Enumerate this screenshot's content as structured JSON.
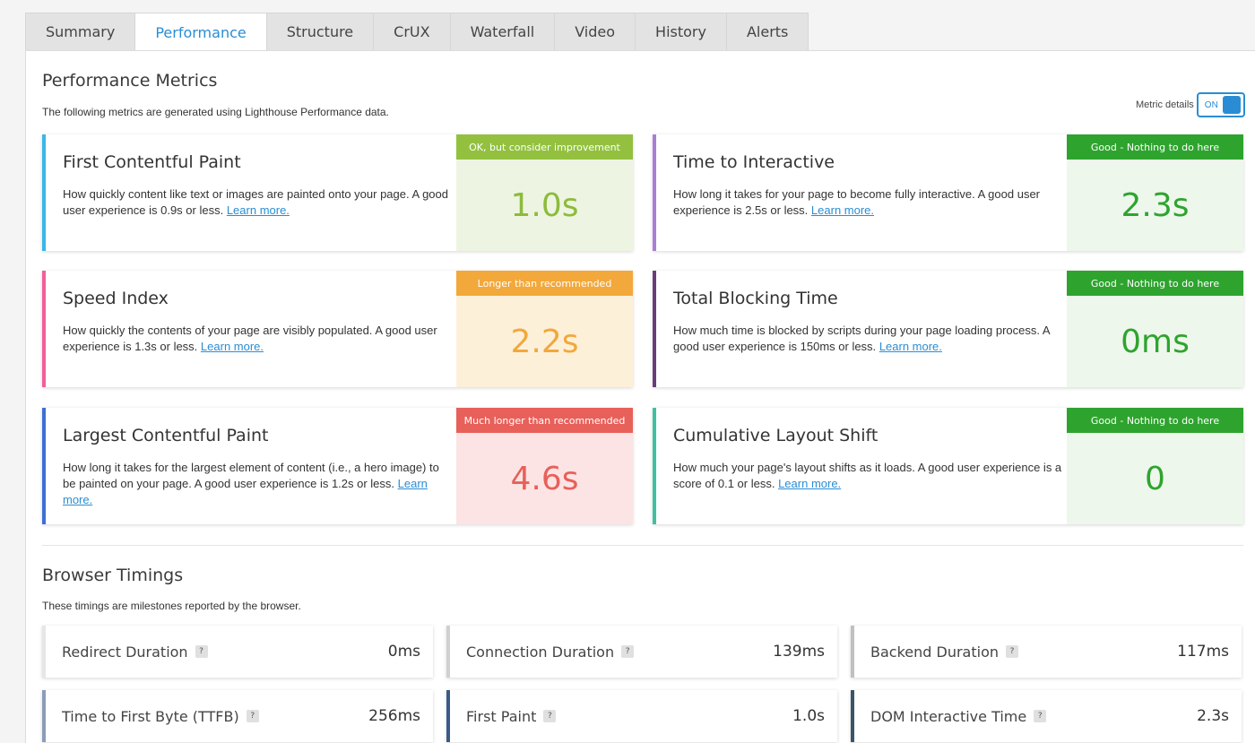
{
  "tabs": [
    {
      "label": "Summary",
      "active": false
    },
    {
      "label": "Performance",
      "active": true
    },
    {
      "label": "Structure",
      "active": false
    },
    {
      "label": "CrUX",
      "active": false
    },
    {
      "label": "Waterfall",
      "active": false
    },
    {
      "label": "Video",
      "active": false
    },
    {
      "label": "History",
      "active": false
    },
    {
      "label": "Alerts",
      "active": false
    }
  ],
  "metrics_section": {
    "title": "Performance Metrics",
    "subtitle": "The following metrics are generated using Lighthouse Performance data.",
    "toggle_label": "Metric details",
    "toggle_state": "ON"
  },
  "metrics": [
    {
      "title": "First Contentful Paint",
      "desc": "How quickly content like text or images are painted onto your page. A good user experience is 0.9s or less.",
      "link": "Learn more.",
      "badge": "OK, but consider improvement",
      "value": "1.0s",
      "accent": "#3bb6e8",
      "badge_color": "#93c13f",
      "bg_color": "#eef4e2",
      "value_color": "#8cbc3a"
    },
    {
      "title": "Time to Interactive",
      "desc": "How long it takes for your page to become fully interactive. A good user experience is 2.5s or less.",
      "link": "Learn more.",
      "badge": "Good - Nothing to do here",
      "value": "2.3s",
      "accent": "#a87ed6",
      "badge_color": "#2ea42e",
      "bg_color": "#eef7ec",
      "value_color": "#2ea42e"
    },
    {
      "title": "Speed Index",
      "desc": "How quickly the contents of your page are visibly populated. A good user experience is 1.3s or less.",
      "link": "Learn more.",
      "badge": "Longer than recommended",
      "value": "2.2s",
      "accent": "#f0609a",
      "badge_color": "#f3a83b",
      "bg_color": "#fdf0d9",
      "value_color": "#f3a83b"
    },
    {
      "title": "Total Blocking Time",
      "desc": "How much time is blocked by scripts during your page loading process. A good user experience is 150ms or less.",
      "link": "Learn more.",
      "badge": "Good - Nothing to do here",
      "value": "0ms",
      "accent": "#6a3b7a",
      "badge_color": "#2ea42e",
      "bg_color": "#eef7ec",
      "value_color": "#2ea42e"
    },
    {
      "title": "Largest Contentful Paint",
      "desc": "How long it takes for the largest element of content (i.e., a hero image) to be painted on your page. A good user experience is 1.2s or less.",
      "link": "Learn more.",
      "badge": "Much longer than recommended",
      "value": "4.6s",
      "accent": "#3e6fd6",
      "badge_color": "#e8605a",
      "bg_color": "#fce4e4",
      "value_color": "#e8605a"
    },
    {
      "title": "Cumulative Layout Shift",
      "desc": "How much your page's layout shifts as it loads. A good user experience is a score of 0.1 or less.",
      "link": "Learn more.",
      "badge": "Good - Nothing to do here",
      "value": "0",
      "accent": "#3fc0a0",
      "badge_color": "#2ea42e",
      "bg_color": "#eef7ec",
      "value_color": "#2ea42e"
    }
  ],
  "timings_section": {
    "title": "Browser Timings",
    "subtitle": "These timings are milestones reported by the browser."
  },
  "timings": [
    {
      "label": "Redirect Duration",
      "value": "0ms",
      "accent": "#e6e6e6"
    },
    {
      "label": "Connection Duration",
      "value": "139ms",
      "accent": "#d0d0d0"
    },
    {
      "label": "Backend Duration",
      "value": "117ms",
      "accent": "#c0c0c0"
    },
    {
      "label": "Time to First Byte (TTFB)",
      "value": "256ms",
      "accent": "#8c9cb8"
    },
    {
      "label": "First Paint",
      "value": "1.0s",
      "accent": "#3b5a8a"
    },
    {
      "label": "DOM Interactive Time",
      "value": "2.3s",
      "accent": "#3b5566"
    }
  ],
  "help_glyph": "?"
}
